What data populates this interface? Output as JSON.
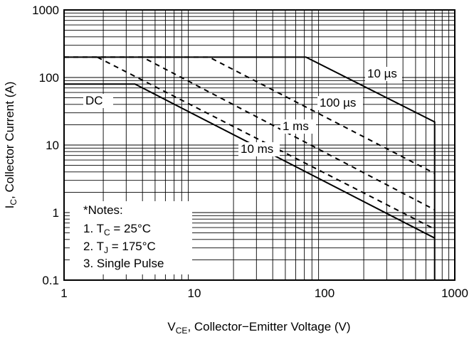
{
  "chart_data": {
    "type": "line",
    "title": "",
    "xlabel": {
      "prefix": "V",
      "sub": "CE",
      "rest": ", Collector−Emitter Voltage (V)"
    },
    "ylabel": {
      "prefix": "I",
      "sub": "C",
      "rest": ", Collector Current (A)"
    },
    "x_scale": "log",
    "y_scale": "log",
    "xlim": [
      1,
      1000
    ],
    "ylim": [
      0.1,
      1000
    ],
    "x_ticks": [
      1,
      10,
      100,
      1000
    ],
    "x_tick_labels": [
      "1",
      "10",
      "100",
      "1000"
    ],
    "y_ticks": [
      0.1,
      1,
      10,
      100,
      1000
    ],
    "y_tick_labels": [
      "0.1",
      "1",
      "10",
      "100",
      "1000"
    ],
    "grid": true,
    "series": [
      {
        "name": "10 µs",
        "style": "solid",
        "x": [
          1,
          72,
          700,
          700
        ],
        "y": [
          200,
          200,
          22,
          0.1
        ]
      },
      {
        "name": "100 µs",
        "style": "dashed",
        "x": [
          1,
          13,
          700
        ],
        "y": [
          200,
          200,
          3.8
        ]
      },
      {
        "name": "1 ms",
        "style": "dashed",
        "x": [
          1,
          4,
          700
        ],
        "y": [
          200,
          200,
          1.1
        ]
      },
      {
        "name": "10 ms",
        "style": "dashed",
        "x": [
          1.8,
          700
        ],
        "y": [
          200,
          0.57
        ]
      },
      {
        "name": "DC",
        "style": "solid",
        "x": [
          1,
          3.5,
          700
        ],
        "y": [
          80,
          80,
          0.42
        ]
      }
    ],
    "notes": {
      "title": "*Notes:",
      "line1": {
        "prefix": "1. T",
        "sub": "C",
        "rest": " = 25°C"
      },
      "line2": {
        "prefix": "2. T",
        "sub": "J",
        "rest": " = 175°C"
      },
      "line3": "3. Single Pulse"
    }
  }
}
